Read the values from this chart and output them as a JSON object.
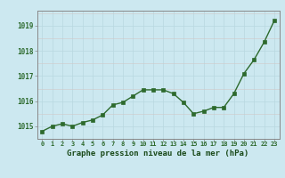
{
  "x": [
    0,
    1,
    2,
    3,
    4,
    5,
    6,
    7,
    8,
    9,
    10,
    11,
    12,
    13,
    14,
    15,
    16,
    17,
    18,
    19,
    20,
    21,
    22,
    23
  ],
  "y": [
    1014.8,
    1015.0,
    1015.1,
    1015.0,
    1015.15,
    1015.25,
    1015.45,
    1015.85,
    1015.95,
    1016.2,
    1016.45,
    1016.45,
    1016.45,
    1016.3,
    1015.95,
    1015.5,
    1015.6,
    1015.75,
    1015.75,
    1016.3,
    1017.1,
    1017.65,
    1018.35,
    1019.2
  ],
  "line_color": "#2d6a2d",
  "marker_color": "#2d6a2d",
  "bg_color": "#cce8f0",
  "grid_color_major": "#b8d8e0",
  "grid_color_minor": "#ddc0c0",
  "xlabel": "Graphe pression niveau de la mer (hPa)",
  "xlabel_color": "#1a4a1a",
  "ytick_labels": [
    "1015",
    "1016",
    "1017",
    "1018",
    "1019"
  ],
  "ytick_values": [
    1015,
    1016,
    1017,
    1018,
    1019
  ],
  "ylim": [
    1014.5,
    1019.6
  ],
  "xlim": [
    -0.5,
    23.5
  ],
  "tick_color": "#2d6a2d",
  "spine_color": "#888888"
}
